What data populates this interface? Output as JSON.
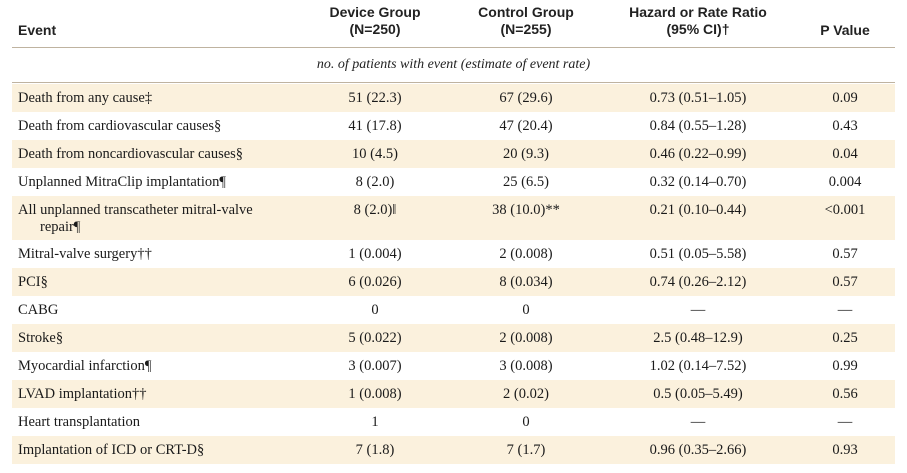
{
  "header": {
    "event": "Event",
    "device_line1": "Device Group",
    "device_line2": "(N=250)",
    "control_line1": "Control Group",
    "control_line2": "(N=255)",
    "hazard_line1": "Hazard or Rate Ratio",
    "hazard_line2": "(95% CI)†",
    "pvalue": "P Value"
  },
  "subheader": "no. of patients with event (estimate of event rate)",
  "rows": [
    {
      "event": "Death from any cause‡",
      "device": "51 (22.3)",
      "control": "67 (29.6)",
      "ratio": "0.73 (0.51–1.05)",
      "p": "0.09"
    },
    {
      "event": "Death from cardiovascular causes§",
      "device": "41 (17.8)",
      "control": "47 (20.4)",
      "ratio": "0.84 (0.55–1.28)",
      "p": "0.43"
    },
    {
      "event": "Death from noncardiovascular causes§",
      "device": "10 (4.5)",
      "control": "20 (9.3)",
      "ratio": "0.46 (0.22–0.99)",
      "p": "0.04"
    },
    {
      "event": "Unplanned MitraClip implantation¶",
      "device": "8 (2.0)",
      "control": "25 (6.5)",
      "ratio": "0.32 (0.14–0.70)",
      "p": "0.004"
    },
    {
      "event": "All unplanned transcatheter mitral-valve",
      "event_cont": "repair¶",
      "device": "8 (2.0)‖",
      "control": "38 (10.0)**",
      "ratio": "0.21 (0.10–0.44)",
      "p": "<0.001"
    },
    {
      "event": "Mitral-valve surgery††",
      "device": "1 (0.004)",
      "control": "2 (0.008)",
      "ratio": "0.51 (0.05–5.58)",
      "p": "0.57"
    },
    {
      "event": "PCI§",
      "device": "6 (0.026)",
      "control": "8 (0.034)",
      "ratio": "0.74 (0.26–2.12)",
      "p": "0.57"
    },
    {
      "event": "CABG",
      "device": "0",
      "control": "0",
      "ratio": "—",
      "p": "—"
    },
    {
      "event": "Stroke§",
      "device": "5 (0.022)",
      "control": "2 (0.008)",
      "ratio": "2.5 (0.48–12.9)",
      "p": "0.25"
    },
    {
      "event": "Myocardial infarction¶",
      "device": "3 (0.007)",
      "control": "3 (0.008)",
      "ratio": "1.02 (0.14–7.52)",
      "p": "0.99"
    },
    {
      "event": "LVAD implantation††",
      "device": "1 (0.008)",
      "control": "2 (0.02)",
      "ratio": "0.5 (0.05–5.49)",
      "p": "0.56"
    },
    {
      "event": "Heart transplantation",
      "device": "1",
      "control": "0",
      "ratio": "—",
      "p": "—"
    },
    {
      "event": "Implantation of ICD or CRT-D§",
      "device": "7 (1.8)",
      "control": "7 (1.7)",
      "ratio": "0.96 (0.35–2.66)",
      "p": "0.93"
    }
  ]
}
